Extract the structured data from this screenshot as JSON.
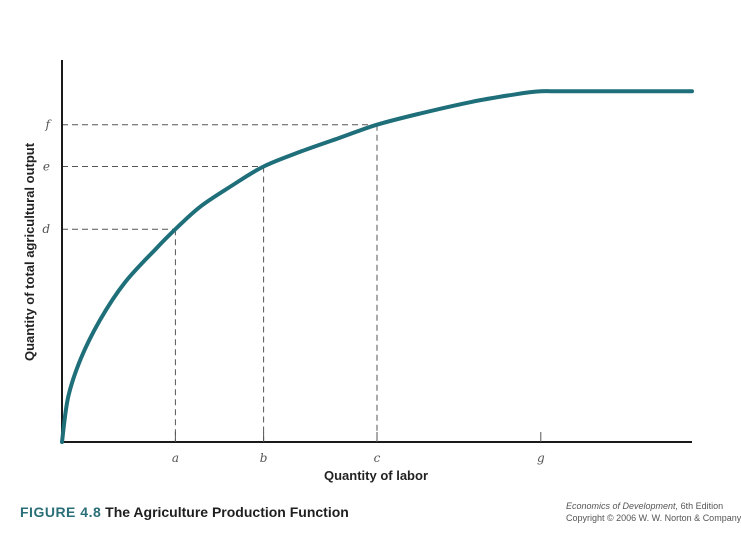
{
  "colors": {
    "curve": "#1f6f7a",
    "axis": "#1a1a1a",
    "guide": "#555555",
    "fig_label": "#2a6f78"
  },
  "chart_data": {
    "type": "line",
    "title": "The Agriculture Production Function",
    "xlabel": "Quantity of labor",
    "ylabel": "Quantity of total agricultural output",
    "xlim": [
      0,
      100
    ],
    "ylim": [
      0,
      100
    ],
    "grid": false,
    "legend": "none",
    "series": [
      {
        "name": "Total agricultural output",
        "x": [
          0,
          1,
          3,
          6,
          10,
          15,
          18,
          22,
          27,
          32,
          38,
          44,
          50,
          57,
          65,
          72,
          76,
          80,
          100
        ],
        "y": [
          0,
          12,
          22,
          32,
          42,
          51,
          56,
          62,
          67.5,
          72.5,
          76.5,
          80,
          83.5,
          86.5,
          89.5,
          91.5,
          92.3,
          92.3,
          92.3
        ]
      }
    ],
    "x_ticks": [
      {
        "label": "a",
        "value": 18
      },
      {
        "label": "b",
        "value": 32
      },
      {
        "label": "c",
        "value": 50
      },
      {
        "label": "g",
        "value": 76
      }
    ],
    "y_ticks": [
      {
        "label": "d",
        "value": 56
      },
      {
        "label": "e",
        "value": 72.5
      },
      {
        "label": "f",
        "value": 83.5
      }
    ],
    "guides": [
      {
        "x_label": "a",
        "y_label": "d",
        "x": 18,
        "y": 56
      },
      {
        "x_label": "b",
        "y_label": "e",
        "x": 32,
        "y": 72.5
      },
      {
        "x_label": "c",
        "y_label": "f",
        "x": 50,
        "y": 83.5
      }
    ]
  },
  "caption": {
    "figure_label": "FIGURE 4.8",
    "figure_title": "The Agriculture Production Function"
  },
  "credit": {
    "book": "Economics of Development,",
    "edition": " 6th Edition",
    "copyright": "Copyright © 2006 W. W. Norton & Company"
  }
}
